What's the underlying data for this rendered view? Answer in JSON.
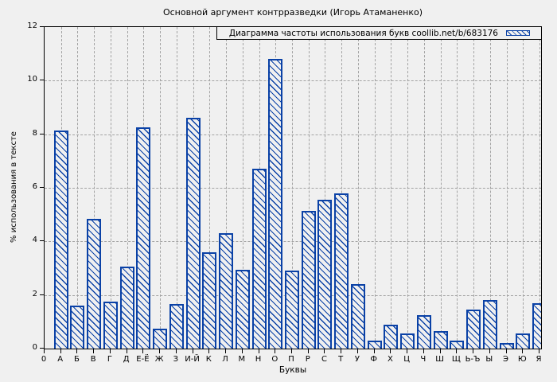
{
  "window": {
    "background_color": "#f0f0f0",
    "text_color": "#000000"
  },
  "colors": {
    "bar_blue": "#0a41a6",
    "grid_gray": "#a3a3a3",
    "axis_black": "#000000",
    "background": "#f0f0f0"
  },
  "chart_data": {
    "type": "bar",
    "title": "Основной аргумент контрразведки (Игорь Атаманенко)",
    "legend_label": "Диаграмма частоты использования букв coollib.net/b/683176",
    "legend_position": "top-right-inside",
    "xlabel": "Буквы",
    "ylabel": "% использования в тексте",
    "origin_label": "0",
    "ylim": [
      0,
      12
    ],
    "yticks": [
      0,
      2,
      4,
      6,
      8,
      10,
      12
    ],
    "grid": true,
    "bar_style": "diagonal-hatch",
    "categories": [
      "А",
      "Б",
      "В",
      "Г",
      "Д",
      "Е-Ё",
      "Ж",
      "З",
      "И-Й",
      "К",
      "Л",
      "М",
      "Н",
      "О",
      "П",
      "Р",
      "С",
      "Т",
      "У",
      "Ф",
      "Х",
      "Ц",
      "Ч",
      "Ш",
      "Щ",
      "Ь-Ъ",
      "Ы",
      "Э",
      "Ю",
      "Я"
    ],
    "values": [
      8.15,
      1.6,
      4.85,
      1.75,
      3.05,
      8.25,
      0.75,
      1.65,
      8.6,
      3.6,
      4.3,
      2.95,
      6.7,
      10.8,
      2.9,
      5.15,
      5.55,
      5.8,
      2.4,
      0.3,
      0.9,
      0.55,
      1.25,
      0.65,
      0.3,
      1.45,
      1.8,
      0.2,
      0.55,
      1.7
    ]
  }
}
